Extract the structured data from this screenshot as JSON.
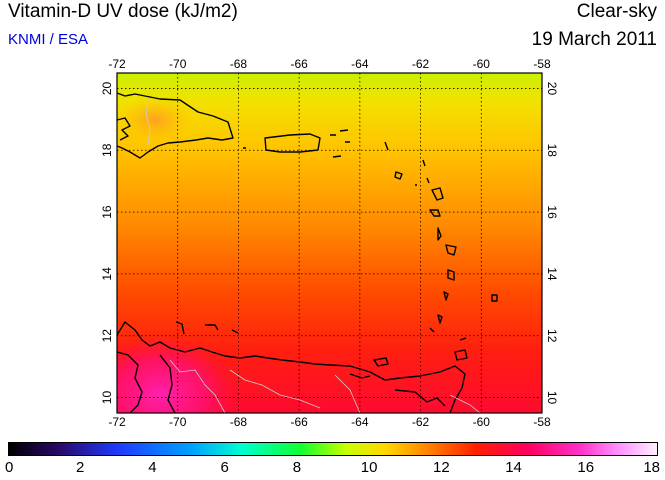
{
  "header": {
    "title": "Vitamin-D UV dose (kJ/m2)",
    "source": "KNMI / ESA",
    "condition": "Clear-sky",
    "date": "19 March 2011"
  },
  "map": {
    "lon_labels": [
      "-72",
      "-70",
      "-68",
      "-66",
      "-64",
      "-62",
      "-60",
      "-58"
    ],
    "lat_labels": [
      "20",
      "18",
      "16",
      "14",
      "12",
      "10"
    ],
    "lon_range": [
      -72,
      -58
    ],
    "lat_range": [
      9.5,
      20.5
    ],
    "grid": true,
    "coastline_color": "#000000",
    "border_color": "#c8c8c8"
  },
  "colorbar": {
    "ticks": [
      "0",
      "2",
      "4",
      "6",
      "8",
      "10",
      "12",
      "14",
      "16",
      "18"
    ],
    "range": [
      0,
      18
    ],
    "colors": [
      "#000000",
      "#2a0a6e",
      "#1e3cff",
      "#00a0ff",
      "#00ffd0",
      "#10ff30",
      "#c8ff00",
      "#ffd800",
      "#ff8c00",
      "#ff2000",
      "#ff0060",
      "#ff30c8",
      "#ff90ff",
      "#fff0ff"
    ]
  }
}
